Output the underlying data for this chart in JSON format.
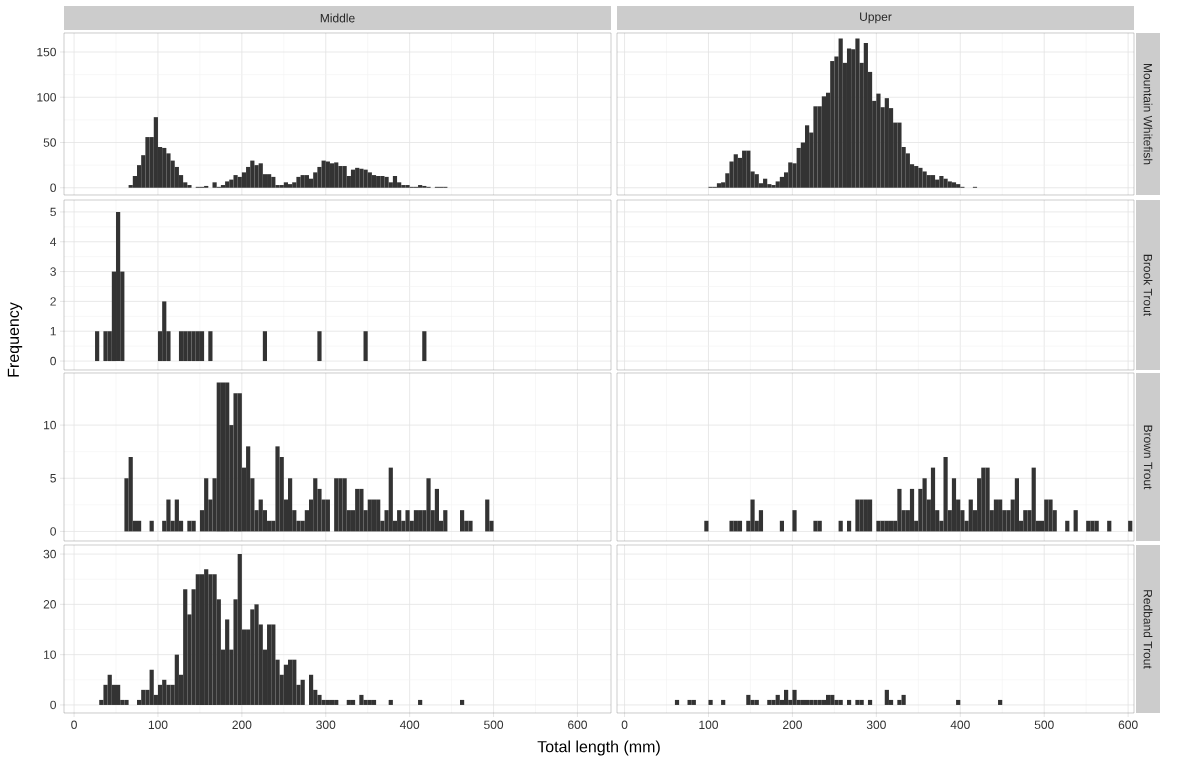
{
  "chart_data": [
    {
      "type": "histogram",
      "title": "Middle",
      "color": "#333333",
      "grid": true,
      "tick_labels": "y",
      "xlim": [
        -12,
        640
      ],
      "ylim": [
        -8,
        171
      ],
      "xticks": [
        0,
        100,
        200,
        300,
        400,
        500,
        600
      ],
      "yticks": [
        0,
        50,
        100,
        150
      ],
      "bins": [
        65,
        70,
        75,
        80,
        85,
        90,
        95,
        100,
        105,
        110,
        115,
        120,
        125,
        130,
        135,
        140,
        145,
        150,
        155,
        160,
        165,
        170,
        175,
        180,
        185,
        190,
        195,
        200,
        205,
        210,
        215,
        220,
        225,
        230,
        235,
        240,
        245,
        250,
        255,
        260,
        265,
        270,
        275,
        280,
        285,
        290,
        295,
        300,
        305,
        310,
        315,
        320,
        325,
        330,
        335,
        340,
        345,
        350,
        355,
        360,
        365,
        370,
        375,
        380,
        385,
        390,
        395,
        400,
        405,
        410,
        415,
        420,
        425,
        430,
        435,
        440,
        445
      ],
      "values": [
        3,
        13,
        25,
        36,
        56,
        56,
        78,
        45,
        44,
        38,
        30,
        23,
        14,
        6,
        3,
        0,
        1,
        1,
        2,
        0,
        6,
        1,
        3,
        7,
        9,
        14,
        12,
        17,
        23,
        30,
        25,
        27,
        15,
        15,
        12,
        3,
        3,
        6,
        4,
        6,
        12,
        14,
        14,
        10,
        17,
        23,
        30,
        29,
        27,
        28,
        24,
        24,
        13,
        20,
        22,
        21,
        20,
        17,
        14,
        13,
        13,
        12,
        6,
        13,
        6,
        3,
        3,
        1,
        1,
        3,
        2,
        1,
        0,
        1,
        1,
        1
      ]
    },
    {
      "type": "histogram",
      "title": "Upper",
      "y2label": "Mountain Whitefish",
      "color": "#333333",
      "grid": true,
      "tick_labels": false,
      "xlim": [
        -9,
        607
      ],
      "ylim": [
        -8,
        171
      ],
      "xticks": [
        0,
        100,
        200,
        300,
        400,
        500,
        600
      ],
      "yticks": [
        0,
        50,
        100,
        150
      ],
      "bins": [
        100,
        105,
        110,
        115,
        120,
        125,
        130,
        135,
        140,
        145,
        150,
        155,
        160,
        165,
        170,
        175,
        180,
        185,
        190,
        195,
        200,
        205,
        210,
        215,
        220,
        225,
        230,
        235,
        240,
        245,
        250,
        255,
        260,
        265,
        270,
        275,
        280,
        285,
        290,
        295,
        300,
        305,
        310,
        315,
        320,
        325,
        330,
        335,
        340,
        345,
        350,
        355,
        360,
        365,
        370,
        375,
        380,
        385,
        390,
        395,
        400,
        405,
        410,
        415,
        420
      ],
      "values": [
        1,
        1,
        5,
        6,
        16,
        29,
        37,
        33,
        41,
        41,
        18,
        15,
        5,
        10,
        4,
        3,
        7,
        12,
        17,
        28,
        27,
        44,
        50,
        69,
        61,
        90,
        90,
        101,
        105,
        140,
        145,
        165,
        138,
        154,
        153,
        165,
        138,
        160,
        128,
        96,
        104,
        89,
        99,
        88,
        72,
        72,
        45,
        38,
        26,
        24,
        22,
        18,
        14,
        14,
        9,
        13,
        10,
        7,
        6,
        4,
        1,
        0,
        0,
        1
      ]
    },
    {
      "type": "histogram",
      "ylabel": "Frequency",
      "color": "#333333",
      "grid": true,
      "tick_labels": "y",
      "xlim": [
        -12,
        640
      ],
      "ylim": [
        -0.3,
        5.4
      ],
      "xticks": [
        0,
        100,
        200,
        300,
        400,
        500,
        600
      ],
      "yticks": [
        0,
        1,
        2,
        3,
        4,
        5
      ],
      "bins": [
        25,
        30,
        35,
        40,
        45,
        50,
        55,
        60,
        65,
        70,
        75,
        80,
        85,
        90,
        95,
        100,
        105,
        110,
        115,
        120,
        125,
        130,
        135,
        140,
        145,
        150,
        155,
        160,
        165,
        170,
        175,
        180,
        185,
        190,
        195,
        200,
        205,
        210,
        215,
        220,
        225,
        230,
        235,
        240,
        245,
        250,
        255,
        260,
        265,
        270,
        275,
        280,
        285,
        290,
        295,
        300,
        305,
        310,
        315,
        320,
        325,
        330,
        335,
        340,
        345,
        350,
        355,
        360,
        365,
        370,
        375,
        380,
        385,
        390,
        395,
        400,
        405,
        410,
        415,
        420
      ],
      "values": [
        1,
        0,
        1,
        1,
        3,
        5,
        3,
        0,
        0,
        0,
        0,
        0,
        0,
        0,
        0,
        1,
        2,
        1,
        0,
        0,
        1,
        1,
        1,
        1,
        1,
        1,
        0,
        1,
        0,
        0,
        0,
        0,
        0,
        0,
        0,
        0,
        0,
        0,
        0,
        0,
        1,
        0,
        0,
        0,
        0,
        0,
        0,
        0,
        0,
        0,
        0,
        0,
        0,
        1,
        0,
        0,
        0,
        0,
        0,
        0,
        0,
        0,
        0,
        0,
        1,
        0,
        0,
        0,
        0,
        0,
        0,
        0,
        0,
        0,
        0,
        0,
        0,
        0,
        1
      ]
    },
    {
      "type": "histogram",
      "y2label": "Brook Trout",
      "color": "#333333",
      "grid": true,
      "tick_labels": false,
      "xlim": [
        -9,
        607
      ],
      "ylim": [
        -0.3,
        5.4
      ],
      "xticks": [
        0,
        100,
        200,
        300,
        400,
        500,
        600
      ],
      "yticks": [
        0,
        1,
        2,
        3,
        4,
        5
      ]
    },
    {
      "type": "histogram",
      "color": "#333333",
      "grid": true,
      "tick_labels": "y",
      "xlim": [
        -12,
        640
      ],
      "ylim": [
        -0.9,
        14.9
      ],
      "xticks": [
        0,
        100,
        200,
        300,
        400,
        500,
        600
      ],
      "yticks": [
        0,
        5,
        10
      ],
      "bins": [
        60,
        65,
        70,
        75,
        80,
        85,
        90,
        95,
        100,
        105,
        110,
        115,
        120,
        125,
        130,
        135,
        140,
        145,
        150,
        155,
        160,
        165,
        170,
        175,
        180,
        185,
        190,
        195,
        200,
        205,
        210,
        215,
        220,
        225,
        230,
        235,
        240,
        245,
        250,
        255,
        260,
        265,
        270,
        275,
        280,
        285,
        290,
        295,
        300,
        305,
        310,
        315,
        320,
        325,
        330,
        335,
        340,
        345,
        350,
        355,
        360,
        365,
        370,
        375,
        380,
        385,
        390,
        395,
        400,
        405,
        410,
        415,
        420,
        425,
        430,
        435,
        440,
        445,
        450,
        455,
        460,
        465,
        470,
        475,
        480,
        485,
        490,
        495,
        500
      ],
      "values": [
        5,
        7,
        1,
        1,
        0,
        0,
        1,
        0,
        0,
        1,
        3,
        1,
        3,
        1,
        0,
        1,
        1,
        0,
        2,
        5,
        3,
        5,
        14,
        14,
        14,
        10,
        13,
        13,
        6,
        8,
        5,
        2,
        3,
        2,
        1,
        1,
        8,
        7,
        3,
        5,
        2,
        1,
        1,
        2,
        3,
        5,
        4,
        3,
        3,
        0,
        5,
        5,
        5,
        2,
        2,
        4,
        4,
        2,
        3,
        3,
        3,
        1,
        2,
        6,
        1,
        2,
        1,
        2,
        1,
        2,
        2,
        2,
        5,
        2,
        4,
        1,
        2,
        0,
        0,
        0,
        2,
        1,
        1,
        0,
        0,
        0,
        3,
        1
      ]
    },
    {
      "type": "histogram",
      "y2label": "Brown Trout",
      "color": "#333333",
      "grid": true,
      "tick_labels": false,
      "xlim": [
        -9,
        607
      ],
      "ylim": [
        -0.9,
        14.9
      ],
      "xticks": [
        0,
        100,
        200,
        300,
        400,
        500,
        600
      ],
      "yticks": [
        0,
        5,
        10
      ],
      "bins": [
        95,
        100,
        105,
        110,
        115,
        120,
        125,
        130,
        135,
        140,
        145,
        150,
        155,
        160,
        165,
        170,
        175,
        180,
        185,
        190,
        195,
        200,
        205,
        210,
        215,
        220,
        225,
        230,
        235,
        240,
        245,
        250,
        255,
        260,
        265,
        270,
        275,
        280,
        285,
        290,
        295,
        300,
        305,
        310,
        315,
        320,
        325,
        330,
        335,
        340,
        345,
        350,
        355,
        360,
        365,
        370,
        375,
        380,
        385,
        390,
        395,
        400,
        405,
        410,
        415,
        420,
        425,
        430,
        435,
        440,
        445,
        450,
        455,
        460,
        465,
        470,
        475,
        480,
        485,
        490,
        495,
        500,
        505,
        510,
        515,
        520,
        525,
        530,
        535,
        540,
        545,
        550,
        555,
        560,
        565,
        570,
        575,
        580,
        585,
        590,
        595,
        600,
        605
      ],
      "values": [
        1,
        0,
        0,
        0,
        0,
        0,
        1,
        1,
        1,
        0,
        1,
        3,
        1,
        2,
        0,
        0,
        0,
        0,
        1,
        0,
        0,
        2,
        0,
        0,
        0,
        0,
        1,
        1,
        0,
        0,
        0,
        0,
        1,
        0,
        1,
        0,
        3,
        3,
        3,
        3,
        0,
        1,
        1,
        1,
        1,
        1,
        4,
        2,
        2,
        4,
        1,
        4,
        5,
        3,
        6,
        2,
        1,
        7,
        2,
        5,
        3,
        2,
        1,
        3,
        2,
        5,
        6,
        6,
        2,
        3,
        3,
        2,
        2,
        3,
        5,
        1,
        2,
        2,
        6,
        1,
        1,
        3,
        3,
        2,
        0,
        0,
        1,
        0,
        2,
        0,
        0,
        1,
        1,
        1,
        0,
        0,
        1,
        0,
        0,
        0,
        0,
        1
      ]
    },
    {
      "type": "histogram",
      "xlabel": "Total length (mm)",
      "color": "#333333",
      "grid": true,
      "xlim": [
        -12,
        640
      ],
      "ylim": [
        -1.6,
        31.8
      ],
      "xticks": [
        0,
        100,
        200,
        300,
        400,
        500,
        600
      ],
      "yticks": [
        0,
        10,
        20,
        30
      ],
      "bins": [
        30,
        35,
        40,
        45,
        50,
        55,
        60,
        65,
        70,
        75,
        80,
        85,
        90,
        95,
        100,
        105,
        110,
        115,
        120,
        125,
        130,
        135,
        140,
        145,
        150,
        155,
        160,
        165,
        170,
        175,
        180,
        185,
        190,
        195,
        200,
        205,
        210,
        215,
        220,
        225,
        230,
        235,
        240,
        245,
        250,
        255,
        260,
        265,
        270,
        275,
        280,
        285,
        290,
        295,
        300,
        305,
        310,
        315,
        320,
        325,
        330,
        335,
        340,
        345,
        350,
        355,
        360,
        365,
        370,
        375,
        380,
        385,
        390,
        395,
        400,
        405,
        410,
        415,
        420,
        425,
        430,
        435,
        440,
        445,
        450,
        455,
        460,
        465
      ],
      "values": [
        1,
        4,
        6,
        4,
        4,
        1,
        1,
        0,
        0,
        1,
        3,
        3,
        7,
        2,
        4,
        5,
        4,
        4,
        10,
        6,
        23,
        18,
        23,
        26,
        26,
        27,
        26,
        26,
        21,
        11,
        17,
        11,
        21,
        30,
        15,
        15,
        19,
        20,
        16,
        11,
        16,
        16,
        9,
        6,
        8,
        9,
        9,
        4,
        5,
        0,
        6,
        3,
        2,
        1,
        1,
        1,
        1,
        0,
        0,
        1,
        1,
        0,
        2,
        1,
        1,
        1,
        0,
        0,
        0,
        1,
        0,
        0,
        0,
        0,
        0,
        0,
        1,
        0,
        0,
        0,
        0,
        0,
        0,
        0,
        0,
        0,
        1
      ]
    },
    {
      "type": "histogram",
      "y2label": "Redband Trout",
      "color": "#333333",
      "grid": true,
      "tick_labels": "x",
      "xlim": [
        -9,
        607
      ],
      "ylim": [
        -1.6,
        31.8
      ],
      "xticks": [
        0,
        100,
        200,
        300,
        400,
        500,
        600
      ],
      "yticks": [
        0,
        10,
        20,
        30
      ],
      "bins": [
        60,
        65,
        70,
        75,
        80,
        85,
        90,
        95,
        100,
        105,
        110,
        115,
        120,
        125,
        130,
        135,
        140,
        145,
        150,
        155,
        160,
        165,
        170,
        175,
        180,
        185,
        190,
        195,
        200,
        205,
        210,
        215,
        220,
        225,
        230,
        235,
        240,
        245,
        250,
        255,
        260,
        265,
        270,
        275,
        280,
        285,
        290,
        295,
        300,
        305,
        310,
        315,
        320,
        325,
        330,
        335,
        340,
        345,
        350,
        355,
        360,
        365,
        370,
        375,
        380,
        385,
        390,
        395,
        400,
        405,
        410,
        415,
        420,
        425,
        430,
        435,
        440,
        445,
        450
      ],
      "values": [
        1,
        0,
        0,
        1,
        1,
        0,
        0,
        0,
        1,
        0,
        0,
        1,
        0,
        0,
        0,
        0,
        0,
        2,
        1,
        1,
        0,
        0,
        1,
        1,
        2,
        1,
        3,
        1,
        3,
        1,
        1,
        1,
        1,
        1,
        1,
        1,
        2,
        2,
        1,
        1,
        0,
        1,
        0,
        1,
        1,
        0,
        1,
        0,
        0,
        0,
        3,
        1,
        0,
        1,
        2,
        0,
        0,
        0,
        0,
        0,
        0,
        0,
        0,
        0,
        0,
        0,
        0,
        1,
        0,
        0,
        0,
        0,
        0,
        0,
        0,
        0,
        0,
        1
      ]
    }
  ]
}
